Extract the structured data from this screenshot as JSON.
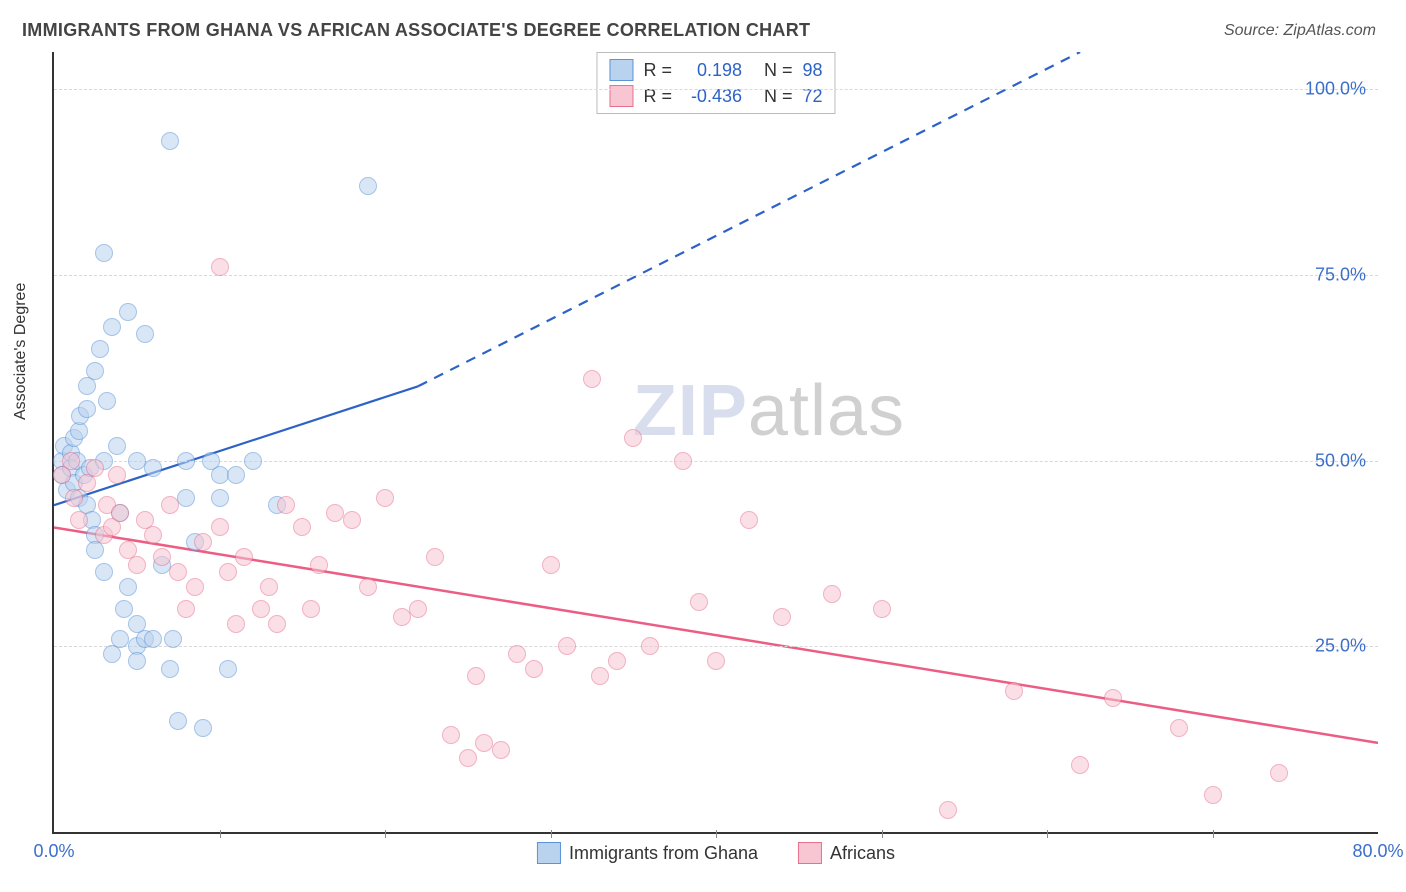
{
  "title": "IMMIGRANTS FROM GHANA VS AFRICAN ASSOCIATE'S DEGREE CORRELATION CHART",
  "source": "Source: ZipAtlas.com",
  "ylabel": "Associate's Degree",
  "watermark_a": "ZIP",
  "watermark_b": "atlas",
  "chart": {
    "type": "scatter",
    "xlim": [
      0,
      80
    ],
    "ylim": [
      0,
      105
    ],
    "yticks": [
      25,
      50,
      75,
      100
    ],
    "ytick_labels": [
      "25.0%",
      "50.0%",
      "75.0%",
      "100.0%"
    ],
    "xticks_major": [
      0,
      80
    ],
    "xtick_labels": [
      "0.0%",
      "80.0%"
    ],
    "xticks_minor": [
      10,
      20,
      30,
      40,
      50,
      60,
      70
    ],
    "grid_color": "#d8d8d8",
    "axis_color": "#333333",
    "tick_label_color": "#3b6fc9",
    "marker_radius": 8,
    "series": [
      {
        "name": "Immigrants from Ghana",
        "fill": "#b9d3ef",
        "stroke": "#5a93d6",
        "fill_opacity": 0.55,
        "R_label": "R =",
        "R": "0.198",
        "N_label": "N =",
        "N": "98",
        "trend": {
          "x1": 0,
          "y1": 44,
          "x2_solid": 22,
          "y2_solid": 60,
          "x2": 62,
          "y2": 105,
          "color": "#2d62c6",
          "width": 2.2
        },
        "points": [
          [
            0.5,
            50
          ],
          [
            0.5,
            48
          ],
          [
            0.8,
            46
          ],
          [
            0.6,
            52
          ],
          [
            1,
            51
          ],
          [
            1,
            49
          ],
          [
            1.2,
            47
          ],
          [
            1.2,
            53
          ],
          [
            1.4,
            50
          ],
          [
            1.5,
            54
          ],
          [
            1.5,
            45
          ],
          [
            1.6,
            56
          ],
          [
            1.8,
            48
          ],
          [
            2,
            57
          ],
          [
            2,
            44
          ],
          [
            2,
            60
          ],
          [
            2.2,
            49
          ],
          [
            2.3,
            42
          ],
          [
            2.5,
            62
          ],
          [
            2.5,
            40
          ],
          [
            2.5,
            38
          ],
          [
            2.8,
            65
          ],
          [
            3,
            35
          ],
          [
            3,
            78
          ],
          [
            3,
            50
          ],
          [
            3.2,
            58
          ],
          [
            3.5,
            68
          ],
          [
            3.5,
            24
          ],
          [
            3.8,
            52
          ],
          [
            4,
            26
          ],
          [
            4,
            43
          ],
          [
            4.2,
            30
          ],
          [
            4.5,
            33
          ],
          [
            4.5,
            70
          ],
          [
            5,
            28
          ],
          [
            5,
            25
          ],
          [
            5,
            23
          ],
          [
            5,
            50
          ],
          [
            5.5,
            26
          ],
          [
            5.5,
            67
          ],
          [
            6,
            49
          ],
          [
            6,
            26
          ],
          [
            6.5,
            36
          ],
          [
            7,
            22
          ],
          [
            7,
            93
          ],
          [
            7.2,
            26
          ],
          [
            7.5,
            15
          ],
          [
            8,
            50
          ],
          [
            8,
            45
          ],
          [
            8.5,
            39
          ],
          [
            9,
            14
          ],
          [
            9.5,
            50
          ],
          [
            10,
            45
          ],
          [
            10,
            48
          ],
          [
            10.5,
            22
          ],
          [
            11,
            48
          ],
          [
            12,
            50
          ],
          [
            13.5,
            44
          ],
          [
            19,
            87
          ]
        ]
      },
      {
        "name": "Africans",
        "fill": "#f7c6d2",
        "stroke": "#e8718e",
        "fill_opacity": 0.55,
        "R_label": "R =",
        "R": "-0.436",
        "N_label": "N =",
        "N": "72",
        "trend": {
          "x1": 0,
          "y1": 41,
          "x2": 80,
          "y2": 12,
          "color": "#ec5d84",
          "width": 2.5
        },
        "points": [
          [
            0.5,
            48
          ],
          [
            1,
            50
          ],
          [
            1.2,
            45
          ],
          [
            1.5,
            42
          ],
          [
            2,
            47
          ],
          [
            2.5,
            49
          ],
          [
            3,
            40
          ],
          [
            3.2,
            44
          ],
          [
            3.5,
            41
          ],
          [
            3.8,
            48
          ],
          [
            4,
            43
          ],
          [
            4.5,
            38
          ],
          [
            5,
            36
          ],
          [
            5.5,
            42
          ],
          [
            6,
            40
          ],
          [
            6.5,
            37
          ],
          [
            7,
            44
          ],
          [
            7.5,
            35
          ],
          [
            8,
            30
          ],
          [
            8.5,
            33
          ],
          [
            9,
            39
          ],
          [
            10,
            41
          ],
          [
            10,
            76
          ],
          [
            10.5,
            35
          ],
          [
            11,
            28
          ],
          [
            11.5,
            37
          ],
          [
            12.5,
            30
          ],
          [
            13,
            33
          ],
          [
            13.5,
            28
          ],
          [
            14,
            44
          ],
          [
            15,
            41
          ],
          [
            15.5,
            30
          ],
          [
            16,
            36
          ],
          [
            17,
            43
          ],
          [
            18,
            42
          ],
          [
            19,
            33
          ],
          [
            20,
            45
          ],
          [
            21,
            29
          ],
          [
            22,
            30
          ],
          [
            23,
            37
          ],
          [
            24,
            13
          ],
          [
            25,
            10
          ],
          [
            25.5,
            21
          ],
          [
            26,
            12
          ],
          [
            27,
            11
          ],
          [
            28,
            24
          ],
          [
            29,
            22
          ],
          [
            30,
            36
          ],
          [
            31,
            25
          ],
          [
            32.5,
            61
          ],
          [
            33,
            21
          ],
          [
            34,
            23
          ],
          [
            35,
            53
          ],
          [
            36,
            25
          ],
          [
            38,
            50
          ],
          [
            39,
            31
          ],
          [
            40,
            23
          ],
          [
            42,
            42
          ],
          [
            44,
            29
          ],
          [
            47,
            32
          ],
          [
            50,
            30
          ],
          [
            54,
            3
          ],
          [
            58,
            19
          ],
          [
            62,
            9
          ],
          [
            64,
            18
          ],
          [
            68,
            14
          ],
          [
            70,
            5
          ],
          [
            74,
            8
          ]
        ]
      }
    ],
    "legend_bottom": [
      "Immigrants from Ghana",
      "Africans"
    ]
  }
}
